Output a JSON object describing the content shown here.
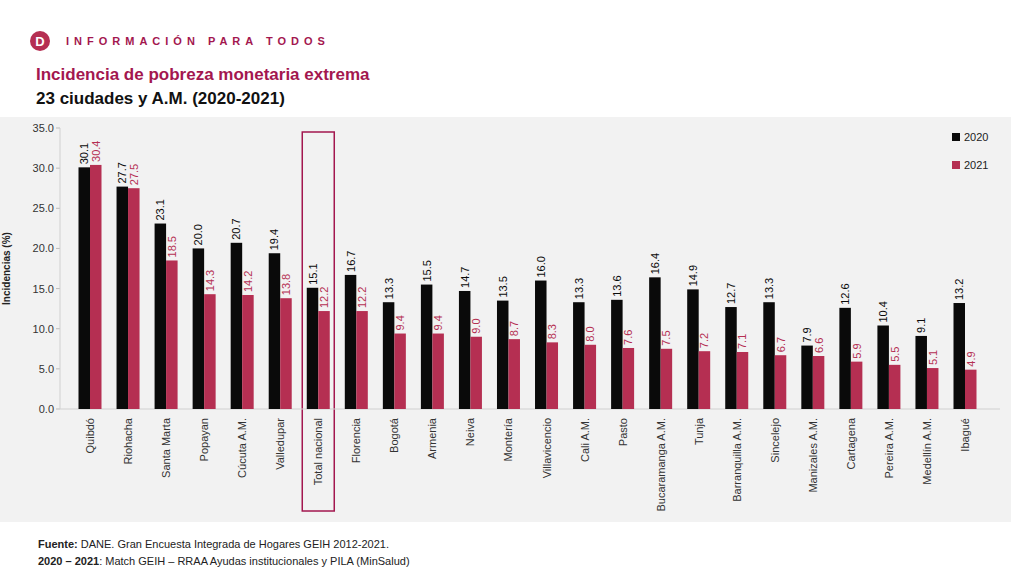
{
  "header": {
    "logo": "D",
    "brand": "INFORMACIÓN PARA TODOS"
  },
  "chart_data": {
    "type": "bar",
    "title": "Incidencia de pobreza monetaria extrema",
    "subtitle": "23 ciudades y A.M. (2020-2021)",
    "y_label": "Incidencias (%)",
    "categories": [
      "Quibdó",
      "Riohacha",
      "Santa Marta",
      "Popayan",
      "Cúcuta A.M.",
      "Valledupar",
      "Total nacional",
      "Florencia",
      "Bogotá",
      "Armenia",
      "Neiva",
      "Montería",
      "Villavicencio",
      "Cali A.M.",
      "Pasto",
      "Bucaramanga A.M.",
      "Tunja",
      "Barranquilla A.M.",
      "Sincelejo",
      "Manizales A.M.",
      "Cartagena",
      "Pereira A.M.",
      "Medellín A.M.",
      "Ibagué"
    ],
    "series": [
      {
        "name": "2020",
        "color": "#0a0a0a",
        "values": [
          30.1,
          27.7,
          23.1,
          20.0,
          20.7,
          19.4,
          15.1,
          16.7,
          13.3,
          15.5,
          14.7,
          13.5,
          16.0,
          13.3,
          13.6,
          16.4,
          14.9,
          12.7,
          13.3,
          7.9,
          12.6,
          10.4,
          9.1,
          13.2
        ],
        "value_labels": [
          "30.1",
          "27.7",
          "23.1",
          "20.0",
          "20.7",
          "19.4",
          "15.1",
          "16.7",
          "13.3",
          "15.5",
          "14.7",
          "13.5",
          "16.0",
          "13.3",
          "13.6",
          "16.4",
          "14.9",
          "12.7",
          "13.3",
          "7.9",
          "12.6",
          "10.4",
          "9.1",
          "13.2"
        ]
      },
      {
        "name": "2021",
        "color": "#b52f52",
        "values": [
          30.4,
          27.5,
          18.5,
          14.3,
          14.2,
          13.8,
          12.2,
          12.2,
          9.4,
          9.4,
          9.0,
          8.7,
          8.3,
          8.0,
          7.6,
          7.5,
          7.2,
          7.1,
          6.7,
          6.6,
          5.9,
          5.5,
          5.1,
          4.9
        ],
        "value_labels": [
          "30.4",
          "27.5",
          "18.5",
          "14.3",
          "14.2",
          "13.8",
          "12.2",
          "12.2",
          "9.4",
          "9.4",
          "9.0",
          "8.7",
          "8.3",
          "8.0",
          "7.6",
          "7.5",
          "7.2",
          "7.1",
          "6.7",
          "6.6",
          "5.9",
          "5.5",
          "5.1",
          "4.9"
        ]
      }
    ],
    "ylim": [
      0,
      35
    ],
    "yticks": [
      {
        "value": 0,
        "label": "0.0"
      },
      {
        "value": 5,
        "label": "5.0"
      },
      {
        "value": 10,
        "label": "10.0"
      },
      {
        "value": 15,
        "label": "15.0"
      },
      {
        "value": 20,
        "label": "20.0"
      },
      {
        "value": 25,
        "label": "25.0"
      },
      {
        "value": 30,
        "label": "30.0"
      },
      {
        "value": 35,
        "label": "35.0"
      }
    ],
    "grid": false,
    "legend": "upper right",
    "data_labels": true
  },
  "footer": {
    "source_label": "Fuente:",
    "source": "DANE. Gran Encuesta Integrada de Hogares GEIH 2012-2021.",
    "note_label": "2020 – 2021",
    "note": ": Match GEIH – RRAA Ayudas institucionales y PILA (MinSalud)"
  }
}
